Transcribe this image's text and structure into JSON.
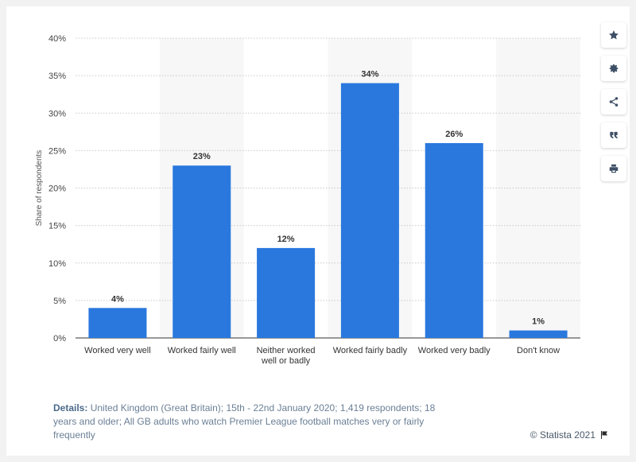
{
  "chart_data": {
    "type": "bar",
    "categories": [
      [
        "Worked very well"
      ],
      [
        "Worked fairly well"
      ],
      [
        "Neither worked",
        "well or badly"
      ],
      [
        "Worked fairly badly"
      ],
      [
        "Worked very badly"
      ],
      [
        "Don't know"
      ]
    ],
    "values": [
      4,
      23,
      12,
      34,
      26,
      1
    ],
    "value_labels": [
      "4%",
      "23%",
      "12%",
      "34%",
      "26%",
      "1%"
    ],
    "ylabel": "Share of respondents",
    "ylim": [
      0,
      40
    ],
    "yticks": [
      0,
      5,
      10,
      15,
      20,
      25,
      30,
      35,
      40
    ],
    "ytick_labels": [
      "0%",
      "5%",
      "10%",
      "15%",
      "20%",
      "25%",
      "30%",
      "35%",
      "40%"
    ],
    "bar_color": "#2a78de",
    "alt_band_color": "#f7f7f7",
    "grid": true
  },
  "toolbar": {
    "buttons": [
      {
        "name": "star-icon"
      },
      {
        "name": "gear-icon"
      },
      {
        "name": "share-icon"
      },
      {
        "name": "quote-icon"
      },
      {
        "name": "print-icon"
      }
    ],
    "icon_color": "#3d4f66"
  },
  "footer": {
    "details_label": "Details:",
    "details_text": "United Kingdom (Great Britain); 15th - 22nd January 2020; 1,419 respondents; 18 years and older; All GB adults who watch Premier League football matches very or fairly frequently",
    "credit": "© Statista 2021"
  }
}
